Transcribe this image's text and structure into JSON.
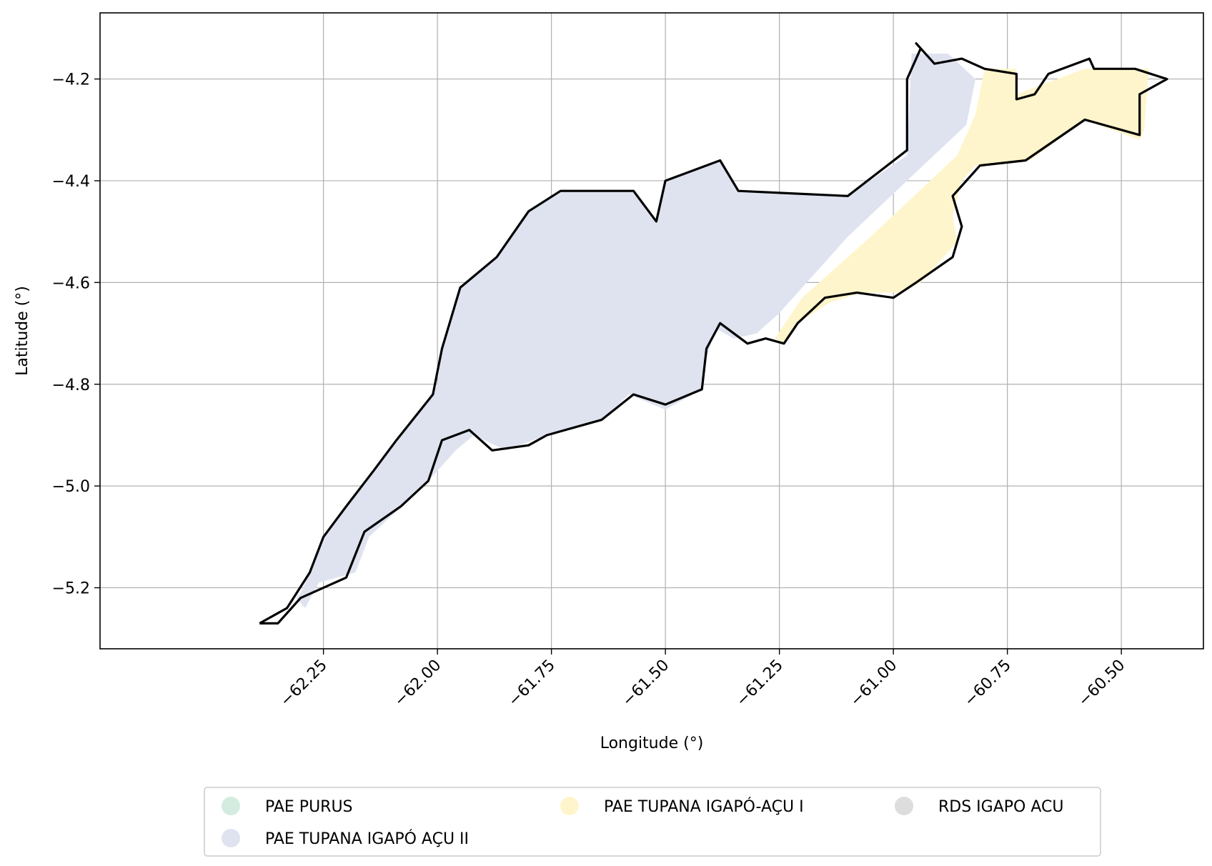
{
  "chart_data": {
    "type": "map",
    "xlabel": "Longitude (°)",
    "ylabel": "Latitude (°)",
    "xlim": [
      -62.74,
      -60.32
    ],
    "ylim": [
      -5.32,
      -4.07
    ],
    "x_ticks": [
      -62.25,
      -62.0,
      -61.75,
      -61.5,
      -61.25,
      -61.0,
      -60.75,
      -60.5
    ],
    "x_tick_labels": [
      "−62.25",
      "−62.00",
      "−61.75",
      "−61.50",
      "−61.25",
      "−61.00",
      "−60.75",
      "−60.50"
    ],
    "y_ticks": [
      -4.2,
      -4.4,
      -4.6,
      -4.8,
      -5.0,
      -5.2
    ],
    "y_tick_labels": [
      "−4.2",
      "−4.4",
      "−4.6",
      "−4.8",
      "−5.0",
      "−5.2"
    ],
    "grid": true,
    "legend_position": "bottom-center",
    "legend": [
      {
        "label": "PAE PURUS",
        "color": "#d4ece0"
      },
      {
        "label": "PAE TUPANA IGAPÓ AÇU II",
        "color": "#dfe3f0"
      },
      {
        "label": "PAE TUPANA IGAPÓ-AÇU I",
        "color": "#fff5cc"
      },
      {
        "label": "RDS IGAPO ACU",
        "color": "#dddddd"
      }
    ],
    "regions": [
      {
        "name": "PAE TUPANA IGAPÓ AÇU II",
        "color": "#dfe3f0",
        "polygon": [
          [
            -62.33,
            -5.24
          ],
          [
            -62.3,
            -5.21
          ],
          [
            -62.28,
            -5.17
          ],
          [
            -62.25,
            -5.1
          ],
          [
            -62.2,
            -5.04
          ],
          [
            -62.14,
            -4.97
          ],
          [
            -62.09,
            -4.91
          ],
          [
            -62.02,
            -4.83
          ],
          [
            -62.0,
            -4.8
          ],
          [
            -61.99,
            -4.73
          ],
          [
            -61.95,
            -4.61
          ],
          [
            -61.87,
            -4.55
          ],
          [
            -61.8,
            -4.46
          ],
          [
            -61.73,
            -4.42
          ],
          [
            -61.57,
            -4.42
          ],
          [
            -61.52,
            -4.48
          ],
          [
            -61.5,
            -4.4
          ],
          [
            -61.38,
            -4.36
          ],
          [
            -61.34,
            -4.42
          ],
          [
            -61.1,
            -4.43
          ],
          [
            -60.97,
            -4.35
          ],
          [
            -60.96,
            -4.15
          ],
          [
            -60.88,
            -4.15
          ],
          [
            -60.82,
            -4.2
          ],
          [
            -60.84,
            -4.29
          ],
          [
            -61.1,
            -4.51
          ],
          [
            -61.25,
            -4.66
          ],
          [
            -61.3,
            -4.7
          ],
          [
            -61.35,
            -4.71
          ],
          [
            -61.39,
            -4.69
          ],
          [
            -61.41,
            -4.75
          ],
          [
            -61.42,
            -4.81
          ],
          [
            -61.5,
            -4.85
          ],
          [
            -61.58,
            -4.82
          ],
          [
            -61.64,
            -4.87
          ],
          [
            -61.76,
            -4.9
          ],
          [
            -61.85,
            -4.93
          ],
          [
            -61.92,
            -4.9
          ],
          [
            -61.96,
            -4.93
          ],
          [
            -62.03,
            -5.0
          ],
          [
            -62.09,
            -5.05
          ],
          [
            -62.15,
            -5.1
          ],
          [
            -62.18,
            -5.17
          ],
          [
            -62.26,
            -5.19
          ],
          [
            -62.29,
            -5.24
          ],
          [
            -62.31,
            -5.22
          ]
        ]
      },
      {
        "name": "PAE TUPANA IGAPÓ-AÇU I",
        "color": "#fff5cc",
        "polygon": [
          [
            -61.26,
            -4.71
          ],
          [
            -61.2,
            -4.63
          ],
          [
            -61.05,
            -4.51
          ],
          [
            -60.86,
            -4.35
          ],
          [
            -60.82,
            -4.27
          ],
          [
            -60.8,
            -4.18
          ],
          [
            -60.73,
            -4.18
          ],
          [
            -60.73,
            -4.23
          ],
          [
            -60.58,
            -4.18
          ],
          [
            -60.44,
            -4.18
          ],
          [
            -60.45,
            -4.3
          ],
          [
            -60.46,
            -4.32
          ],
          [
            -60.58,
            -4.28
          ],
          [
            -60.7,
            -4.36
          ],
          [
            -60.82,
            -4.37
          ],
          [
            -60.85,
            -4.4
          ],
          [
            -60.87,
            -4.47
          ],
          [
            -60.86,
            -4.52
          ],
          [
            -60.94,
            -4.6
          ],
          [
            -60.99,
            -4.62
          ],
          [
            -61.07,
            -4.62
          ],
          [
            -61.14,
            -4.64
          ],
          [
            -61.21,
            -4.68
          ],
          [
            -61.24,
            -4.72
          ]
        ]
      }
    ],
    "outline": [
      [
        -62.39,
        -5.27
      ],
      [
        -62.35,
        -5.27
      ],
      [
        -62.3,
        -5.22
      ],
      [
        -62.2,
        -5.18
      ],
      [
        -62.16,
        -5.09
      ],
      [
        -62.08,
        -5.04
      ],
      [
        -62.02,
        -4.99
      ],
      [
        -61.99,
        -4.91
      ],
      [
        -61.93,
        -4.89
      ],
      [
        -61.88,
        -4.93
      ],
      [
        -61.8,
        -4.92
      ],
      [
        -61.76,
        -4.9
      ],
      [
        -61.64,
        -4.87
      ],
      [
        -61.57,
        -4.82
      ],
      [
        -61.5,
        -4.84
      ],
      [
        -61.42,
        -4.81
      ],
      [
        -61.41,
        -4.73
      ],
      [
        -61.38,
        -4.68
      ],
      [
        -61.32,
        -4.72
      ],
      [
        -61.28,
        -4.71
      ],
      [
        -61.24,
        -4.72
      ],
      [
        -61.21,
        -4.68
      ],
      [
        -61.15,
        -4.63
      ],
      [
        -61.08,
        -4.62
      ],
      [
        -61.0,
        -4.63
      ],
      [
        -60.95,
        -4.6
      ],
      [
        -60.87,
        -4.55
      ],
      [
        -60.85,
        -4.49
      ],
      [
        -60.87,
        -4.43
      ],
      [
        -60.81,
        -4.37
      ],
      [
        -60.71,
        -4.36
      ],
      [
        -60.58,
        -4.28
      ],
      [
        -60.46,
        -4.31
      ],
      [
        -60.46,
        -4.23
      ],
      [
        -60.4,
        -4.2
      ],
      [
        -60.47,
        -4.18
      ],
      [
        -60.56,
        -4.18
      ],
      [
        -60.57,
        -4.16
      ],
      [
        -60.66,
        -4.19
      ],
      [
        -60.69,
        -4.23
      ],
      [
        -60.73,
        -4.24
      ],
      [
        -60.73,
        -4.19
      ],
      [
        -60.8,
        -4.18
      ],
      [
        -60.85,
        -4.16
      ],
      [
        -60.91,
        -4.17
      ],
      [
        -60.95,
        -4.13
      ],
      [
        -60.94,
        -4.14
      ],
      [
        -60.97,
        -4.2
      ],
      [
        -60.97,
        -4.34
      ],
      [
        -61.1,
        -4.43
      ],
      [
        -61.34,
        -4.42
      ],
      [
        -61.38,
        -4.36
      ],
      [
        -61.5,
        -4.4
      ],
      [
        -61.52,
        -4.48
      ],
      [
        -61.57,
        -4.42
      ],
      [
        -61.73,
        -4.42
      ],
      [
        -61.8,
        -4.46
      ],
      [
        -61.87,
        -4.55
      ],
      [
        -61.95,
        -4.61
      ],
      [
        -61.99,
        -4.73
      ],
      [
        -62.01,
        -4.82
      ],
      [
        -62.09,
        -4.91
      ],
      [
        -62.14,
        -4.97
      ],
      [
        -62.2,
        -5.04
      ],
      [
        -62.25,
        -5.1
      ],
      [
        -62.28,
        -5.17
      ],
      [
        -62.33,
        -5.24
      ],
      [
        -62.39,
        -5.27
      ]
    ]
  }
}
